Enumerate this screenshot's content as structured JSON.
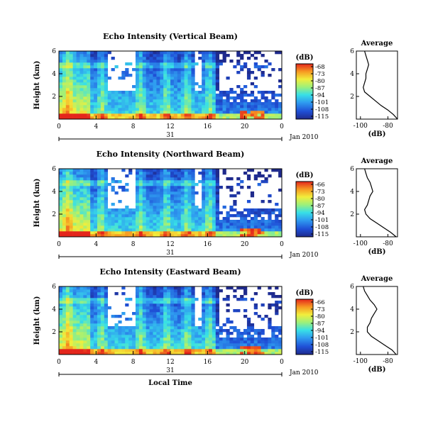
{
  "chart_data": [
    {
      "type": "heatmap",
      "title": "Echo Intensity (Vertical Beam)",
      "ylabel": "Height (km)",
      "y_ticks": [
        "2",
        "4",
        "6"
      ],
      "x_ticks": [
        "0",
        "4",
        "8",
        "12",
        "16",
        "20",
        "0"
      ],
      "xlim": [
        0,
        24
      ],
      "ylim": [
        0,
        6
      ],
      "day_label": "31",
      "date_label": "Jan 2010",
      "colorbar": {
        "unit": "(dB)",
        "ticks": [
          "-68",
          "-73",
          "-80",
          "-87",
          "-94",
          "-101",
          "-108",
          "-115"
        ]
      },
      "average_profile": {
        "title": "Average",
        "xlabel": "(dB)",
        "x_ticks": [
          "-100",
          "-80"
        ],
        "y_ticks": [
          "2",
          "4",
          "6"
        ],
        "xlim": [
          -103,
          -73
        ],
        "ylim": [
          0,
          6
        ],
        "points": [
          [
            -73,
            0.0
          ],
          [
            -76,
            0.4
          ],
          [
            -80,
            0.8
          ],
          [
            -85,
            1.2
          ],
          [
            -89,
            1.6
          ],
          [
            -93,
            2.0
          ],
          [
            -97,
            2.4
          ],
          [
            -98,
            2.8
          ],
          [
            -97,
            3.2
          ],
          [
            -96,
            3.6
          ],
          [
            -96,
            4.0
          ],
          [
            -95,
            4.4
          ],
          [
            -94,
            4.8
          ],
          [
            -95,
            5.2
          ],
          [
            -96,
            5.6
          ],
          [
            -97,
            6.0
          ]
        ]
      }
    },
    {
      "type": "heatmap",
      "title": "Echo Intensity (Northward Beam)",
      "ylabel": "Height (km)",
      "y_ticks": [
        "2",
        "4",
        "6"
      ],
      "x_ticks": [
        "0",
        "4",
        "8",
        "12",
        "16",
        "20",
        "0"
      ],
      "xlim": [
        0,
        24
      ],
      "ylim": [
        0,
        6
      ],
      "day_label": "31",
      "date_label": "Jan 2010",
      "colorbar": {
        "unit": "(dB)",
        "ticks": [
          "-66",
          "-73",
          "-80",
          "-87",
          "-94",
          "-101",
          "-108",
          "-115"
        ]
      },
      "average_profile": {
        "title": "Average",
        "xlabel": "(dB)",
        "x_ticks": [
          "-100",
          "-80"
        ],
        "y_ticks": [
          "2",
          "4",
          "6"
        ],
        "xlim": [
          -103,
          -73
        ],
        "ylim": [
          0,
          6
        ],
        "points": [
          [
            -74,
            0.0
          ],
          [
            -78,
            0.4
          ],
          [
            -83,
            0.8
          ],
          [
            -88,
            1.2
          ],
          [
            -93,
            1.6
          ],
          [
            -96,
            2.0
          ],
          [
            -97,
            2.4
          ],
          [
            -95,
            2.8
          ],
          [
            -94,
            3.2
          ],
          [
            -93,
            3.6
          ],
          [
            -91,
            4.0
          ],
          [
            -92,
            4.4
          ],
          [
            -93,
            4.8
          ],
          [
            -95,
            5.2
          ],
          [
            -96,
            5.6
          ],
          [
            -97,
            6.0
          ]
        ]
      }
    },
    {
      "type": "heatmap",
      "title": "Echo Intensity (Eastward Beam)",
      "ylabel": "Height (km)",
      "y_ticks": [
        "2",
        "4",
        "6"
      ],
      "x_ticks": [
        "0",
        "4",
        "8",
        "12",
        "16",
        "20",
        "0"
      ],
      "xlim": [
        0,
        24
      ],
      "ylim": [
        0,
        6
      ],
      "day_label": "31",
      "date_label": "Jan 2010",
      "xlabel": "Local Time",
      "colorbar": {
        "unit": "(dB)",
        "ticks": [
          "-66",
          "-73",
          "-80",
          "-87",
          "-94",
          "-101",
          "-108",
          "-115"
        ]
      },
      "average_profile": {
        "title": "Average",
        "xlabel": "(dB)",
        "x_ticks": [
          "-100",
          "-80"
        ],
        "y_ticks": [
          "2",
          "4",
          "6"
        ],
        "xlim": [
          -103,
          -73
        ],
        "ylim": [
          0,
          6
        ],
        "points": [
          [
            -74,
            0.0
          ],
          [
            -77,
            0.4
          ],
          [
            -82,
            0.8
          ],
          [
            -87,
            1.2
          ],
          [
            -92,
            1.6
          ],
          [
            -95,
            2.0
          ],
          [
            -95,
            2.4
          ],
          [
            -93,
            2.8
          ],
          [
            -92,
            3.2
          ],
          [
            -90,
            3.6
          ],
          [
            -88,
            4.0
          ],
          [
            -90,
            4.4
          ],
          [
            -93,
            4.8
          ],
          [
            -95,
            5.2
          ],
          [
            -97,
            5.6
          ],
          [
            -98,
            6.0
          ]
        ]
      }
    }
  ]
}
